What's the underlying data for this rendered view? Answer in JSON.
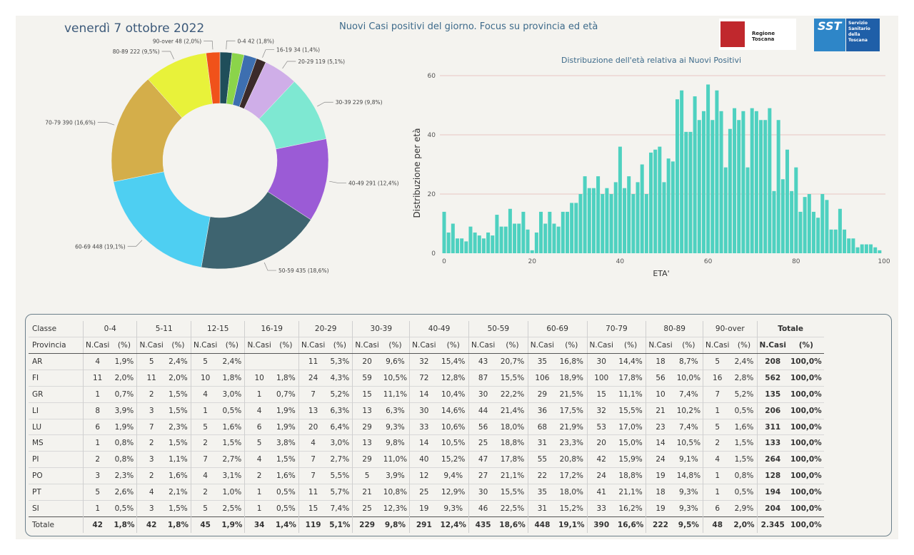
{
  "header": {
    "date": "venerdì 7 ottobre 2022",
    "title": "Nuovi Casi positivi del giorno. Focus su provincia ed età",
    "logo_rt": "Regione Toscana",
    "logo_sst": "SST",
    "logo_sst_lines": [
      "Servizio",
      "Sanitario",
      "della",
      "Toscana"
    ]
  },
  "chart_data": [
    {
      "type": "pie",
      "donut": true,
      "categories": [
        "0-4",
        "5-11",
        "12-15",
        "16-19",
        "20-29",
        "30-39",
        "40-49",
        "50-59",
        "60-69",
        "70-79",
        "80-89",
        "90-over"
      ],
      "values": [
        42,
        42,
        45,
        34,
        119,
        229,
        291,
        435,
        448,
        390,
        222,
        48
      ],
      "labels": [
        "0-4 42 (1,8%)",
        "",
        "",
        "16-19 34 (1,4%)",
        "20-29 119 (5,1%)",
        "30-39 229 (9,8%)",
        "40-49 291 (12,4%)",
        "50-59 435 (18,6%)",
        "60-69 448 (19,1%)",
        "70-79 390 (16,6%)",
        "80-89 222 (9,5%)",
        "90-over 48 (2,0%)"
      ],
      "colors": [
        "#1f4e5a",
        "#8bd44a",
        "#3d6fb0",
        "#3b2a2a",
        "#cfaee8",
        "#7ee8d2",
        "#9b5bd6",
        "#3e6470",
        "#4ecff2",
        "#d4ae4a",
        "#e8f23a",
        "#f0521a"
      ]
    },
    {
      "type": "bar",
      "title": "Distribuzione dell'età relativa ai Nuovi Positivi",
      "xlabel": "ETA'",
      "ylabel": "Distribuzione per età",
      "xlim": [
        0,
        100
      ],
      "ylim": [
        0,
        60
      ],
      "xticks": [
        0,
        20,
        40,
        60,
        80,
        100
      ],
      "yticks": [
        0,
        20,
        40,
        60
      ],
      "color": "#4ed1c0",
      "x": [
        0,
        1,
        2,
        3,
        4,
        5,
        6,
        7,
        8,
        9,
        10,
        11,
        12,
        13,
        14,
        15,
        16,
        17,
        18,
        19,
        20,
        21,
        22,
        23,
        24,
        25,
        26,
        27,
        28,
        29,
        30,
        31,
        32,
        33,
        34,
        35,
        36,
        37,
        38,
        39,
        40,
        41,
        42,
        43,
        44,
        45,
        46,
        47,
        48,
        49,
        50,
        51,
        52,
        53,
        54,
        55,
        56,
        57,
        58,
        59,
        60,
        61,
        62,
        63,
        64,
        65,
        66,
        67,
        68,
        69,
        70,
        71,
        72,
        73,
        74,
        75,
        76,
        77,
        78,
        79,
        80,
        81,
        82,
        83,
        84,
        85,
        86,
        87,
        88,
        89,
        90,
        91,
        92,
        93,
        94,
        95,
        96,
        97,
        98,
        99,
        100
      ],
      "values": [
        14,
        7,
        10,
        5,
        5,
        4,
        9,
        7,
        6,
        5,
        7,
        6,
        13,
        9,
        9,
        15,
        10,
        10,
        14,
        8,
        1,
        7,
        14,
        10,
        14,
        10,
        9,
        14,
        14,
        17,
        17,
        20,
        26,
        22,
        22,
        26,
        20,
        22,
        20,
        24,
        36,
        22,
        26,
        20,
        24,
        30,
        20,
        34,
        35,
        36,
        24,
        32,
        31,
        52,
        55,
        41,
        41,
        53,
        45,
        48,
        57,
        45,
        55,
        48,
        29,
        42,
        49,
        45,
        48,
        29,
        49,
        48,
        45,
        45,
        49,
        21,
        45,
        25,
        35,
        21,
        29,
        14,
        19,
        20,
        14,
        12,
        20,
        18,
        8,
        8,
        15,
        8,
        5,
        5,
        2,
        3,
        3,
        3,
        2,
        1,
        0
      ]
    }
  ],
  "table": {
    "corner_top": "Classe",
    "corner_bottom": "Provincia",
    "age_groups": [
      "0-4",
      "5-11",
      "12-15",
      "16-19",
      "20-29",
      "30-39",
      "40-49",
      "50-59",
      "60-69",
      "70-79",
      "80-89",
      "90-over"
    ],
    "total_label": "Totale",
    "sub_ncasi": "N.Casi",
    "sub_pct": "(%)",
    "rows": [
      {
        "prov": "AR",
        "cells": [
          "4",
          "1,9%",
          "5",
          "2,4%",
          "5",
          "2,4%",
          "",
          "",
          "11",
          "5,3%",
          "20",
          "9,6%",
          "32",
          "15,4%",
          "43",
          "20,7%",
          "35",
          "16,8%",
          "30",
          "14,4%",
          "18",
          "8,7%",
          "5",
          "2,4%"
        ],
        "tot": "208",
        "totpct": "100,0%"
      },
      {
        "prov": "FI",
        "cells": [
          "11",
          "2,0%",
          "11",
          "2,0%",
          "10",
          "1,8%",
          "10",
          "1,8%",
          "24",
          "4,3%",
          "59",
          "10,5%",
          "72",
          "12,8%",
          "87",
          "15,5%",
          "106",
          "18,9%",
          "100",
          "17,8%",
          "56",
          "10,0%",
          "16",
          "2,8%"
        ],
        "tot": "562",
        "totpct": "100,0%"
      },
      {
        "prov": "GR",
        "cells": [
          "1",
          "0,7%",
          "2",
          "1,5%",
          "4",
          "3,0%",
          "1",
          "0,7%",
          "7",
          "5,2%",
          "15",
          "11,1%",
          "14",
          "10,4%",
          "30",
          "22,2%",
          "29",
          "21,5%",
          "15",
          "11,1%",
          "10",
          "7,4%",
          "7",
          "5,2%"
        ],
        "tot": "135",
        "totpct": "100,0%"
      },
      {
        "prov": "LI",
        "cells": [
          "8",
          "3,9%",
          "3",
          "1,5%",
          "1",
          "0,5%",
          "4",
          "1,9%",
          "13",
          "6,3%",
          "13",
          "6,3%",
          "30",
          "14,6%",
          "44",
          "21,4%",
          "36",
          "17,5%",
          "32",
          "15,5%",
          "21",
          "10,2%",
          "1",
          "0,5%"
        ],
        "tot": "206",
        "totpct": "100,0%"
      },
      {
        "prov": "LU",
        "cells": [
          "6",
          "1,9%",
          "7",
          "2,3%",
          "5",
          "1,6%",
          "6",
          "1,9%",
          "20",
          "6,4%",
          "29",
          "9,3%",
          "33",
          "10,6%",
          "56",
          "18,0%",
          "68",
          "21,9%",
          "53",
          "17,0%",
          "23",
          "7,4%",
          "5",
          "1,6%"
        ],
        "tot": "311",
        "totpct": "100,0%"
      },
      {
        "prov": "MS",
        "cells": [
          "1",
          "0,8%",
          "2",
          "1,5%",
          "2",
          "1,5%",
          "5",
          "3,8%",
          "4",
          "3,0%",
          "13",
          "9,8%",
          "14",
          "10,5%",
          "25",
          "18,8%",
          "31",
          "23,3%",
          "20",
          "15,0%",
          "14",
          "10,5%",
          "2",
          "1,5%"
        ],
        "tot": "133",
        "totpct": "100,0%"
      },
      {
        "prov": "PI",
        "cells": [
          "2",
          "0,8%",
          "3",
          "1,1%",
          "7",
          "2,7%",
          "4",
          "1,5%",
          "7",
          "2,7%",
          "29",
          "11,0%",
          "40",
          "15,2%",
          "47",
          "17,8%",
          "55",
          "20,8%",
          "42",
          "15,9%",
          "24",
          "9,1%",
          "4",
          "1,5%"
        ],
        "tot": "264",
        "totpct": "100,0%"
      },
      {
        "prov": "PO",
        "cells": [
          "3",
          "2,3%",
          "2",
          "1,6%",
          "4",
          "3,1%",
          "2",
          "1,6%",
          "7",
          "5,5%",
          "5",
          "3,9%",
          "12",
          "9,4%",
          "27",
          "21,1%",
          "22",
          "17,2%",
          "24",
          "18,8%",
          "19",
          "14,8%",
          "1",
          "0,8%"
        ],
        "tot": "128",
        "totpct": "100,0%"
      },
      {
        "prov": "PT",
        "cells": [
          "5",
          "2,6%",
          "4",
          "2,1%",
          "2",
          "1,0%",
          "1",
          "0,5%",
          "11",
          "5,7%",
          "21",
          "10,8%",
          "25",
          "12,9%",
          "30",
          "15,5%",
          "35",
          "18,0%",
          "41",
          "21,1%",
          "18",
          "9,3%",
          "1",
          "0,5%"
        ],
        "tot": "194",
        "totpct": "100,0%"
      },
      {
        "prov": "SI",
        "cells": [
          "1",
          "0,5%",
          "3",
          "1,5%",
          "5",
          "2,5%",
          "1",
          "0,5%",
          "15",
          "7,4%",
          "25",
          "12,3%",
          "19",
          "9,3%",
          "46",
          "22,5%",
          "31",
          "15,2%",
          "33",
          "16,2%",
          "19",
          "9,3%",
          "6",
          "2,9%"
        ],
        "tot": "204",
        "totpct": "100,0%"
      }
    ],
    "total_row": {
      "prov": "Totale",
      "cells": [
        "42",
        "1,8%",
        "42",
        "1,8%",
        "45",
        "1,9%",
        "34",
        "1,4%",
        "119",
        "5,1%",
        "229",
        "9,8%",
        "291",
        "12,4%",
        "435",
        "18,6%",
        "448",
        "19,1%",
        "390",
        "16,6%",
        "222",
        "9,5%",
        "48",
        "2,0%"
      ],
      "tot": "2.345",
      "totpct": "100,0%"
    }
  }
}
